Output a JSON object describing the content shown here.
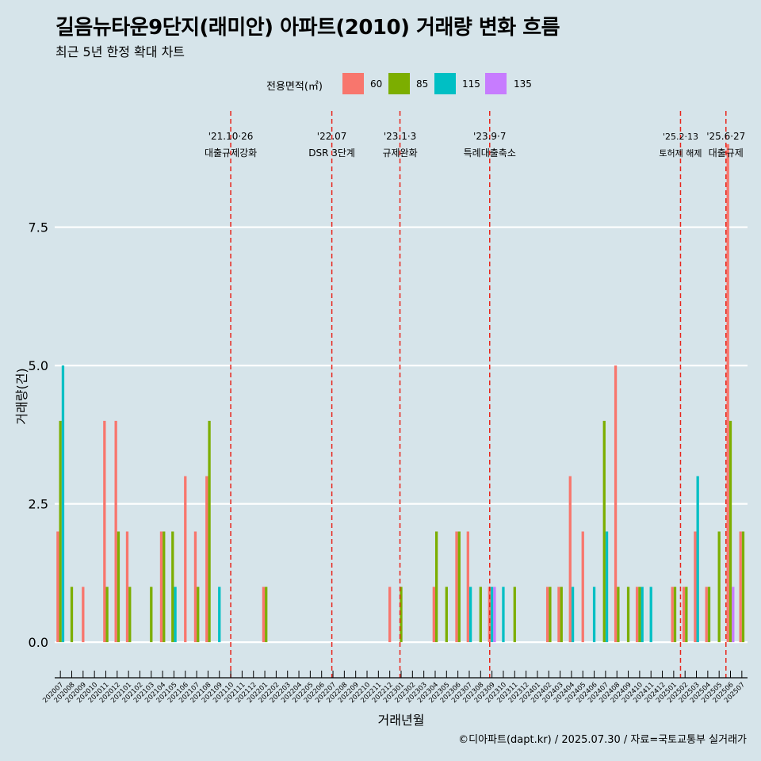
{
  "page": {
    "title": "길음뉴타운9단지(래미안) 아파트(2010) 거래량 변화 흐름",
    "subtitle": "최근 5년 한정 확대 차트",
    "caption": "©디아파트(dapt.kr) / 2025.07.30 / 자료=국토교통부 실거래가"
  },
  "legend": {
    "title": "전용면적(㎡)",
    "items": [
      {
        "label": "60",
        "color": "#f8766d"
      },
      {
        "label": "85",
        "color": "#7cae00"
      },
      {
        "label": "115",
        "color": "#00bfc4"
      },
      {
        "label": "135",
        "color": "#c77cff"
      }
    ]
  },
  "chart_data": {
    "type": "bar",
    "xlabel": "거래년월",
    "ylabel": "거래량(건)",
    "ylim": [
      -0.5,
      9.6
    ],
    "yticks": [
      0.0,
      2.5,
      5.0,
      7.5
    ],
    "ytick_labels": [
      "0.0",
      "2.5",
      "5.0",
      "7.5"
    ],
    "grid": true,
    "legend_position": "top",
    "categories": [
      "202007",
      "202008",
      "202009",
      "202010",
      "202011",
      "202012",
      "202101",
      "202102",
      "202103",
      "202104",
      "202105",
      "202106",
      "202107",
      "202108",
      "202109",
      "202110",
      "202111",
      "202112",
      "202201",
      "202202",
      "202203",
      "202204",
      "202205",
      "202206",
      "202207",
      "202208",
      "202209",
      "202210",
      "202211",
      "202212",
      "202301",
      "202302",
      "202303",
      "202304",
      "202305",
      "202306",
      "202307",
      "202308",
      "202309",
      "202310",
      "202311",
      "202312",
      "202401",
      "202402",
      "202403",
      "202404",
      "202405",
      "202406",
      "202407",
      "202408",
      "202409",
      "202410",
      "202411",
      "202412",
      "202501",
      "202502",
      "202503",
      "202504",
      "202505",
      "202506",
      "202507"
    ],
    "series": [
      {
        "name": "60",
        "color": "#f8766d",
        "values": [
          2,
          0,
          1,
          0,
          4,
          4,
          2,
          0,
          0,
          2,
          0,
          3,
          2,
          3,
          0,
          0,
          0,
          0,
          1,
          0,
          0,
          0,
          0,
          0,
          0,
          0,
          0,
          0,
          0,
          1,
          0,
          0,
          0,
          1,
          0,
          2,
          2,
          0,
          1,
          0,
          0,
          0,
          0,
          1,
          1,
          3,
          2,
          0,
          0,
          5,
          0,
          1,
          0,
          0,
          1,
          1,
          2,
          1,
          0,
          9,
          2
        ]
      },
      {
        "name": "85",
        "color": "#7cae00",
        "values": [
          4,
          1,
          0,
          0,
          1,
          2,
          1,
          0,
          1,
          2,
          2,
          0,
          1,
          4,
          0,
          0,
          0,
          0,
          1,
          0,
          0,
          0,
          0,
          0,
          0,
          0,
          0,
          0,
          0,
          0,
          1,
          0,
          0,
          2,
          1,
          2,
          0,
          1,
          0,
          0,
          1,
          0,
          0,
          1,
          1,
          0,
          0,
          0,
          4,
          1,
          1,
          1,
          0,
          0,
          1,
          1,
          0,
          1,
          2,
          4,
          2
        ]
      },
      {
        "name": "115",
        "color": "#00bfc4",
        "values": [
          5,
          0,
          0,
          0,
          0,
          0,
          0,
          0,
          0,
          0,
          1,
          0,
          0,
          0,
          1,
          0,
          0,
          0,
          0,
          0,
          0,
          0,
          0,
          0,
          0,
          0,
          0,
          0,
          0,
          0,
          0,
          0,
          0,
          0,
          0,
          0,
          1,
          0,
          1,
          1,
          0,
          0,
          0,
          0,
          0,
          1,
          0,
          1,
          2,
          0,
          0,
          1,
          1,
          0,
          0,
          0,
          3,
          0,
          0,
          0,
          0
        ]
      },
      {
        "name": "135",
        "color": "#c77cff",
        "values": [
          0,
          0,
          0,
          0,
          0,
          0,
          0,
          0,
          0,
          0,
          0,
          0,
          0,
          0,
          0,
          0,
          0,
          0,
          0,
          0,
          0,
          0,
          0,
          0,
          0,
          0,
          0,
          0,
          0,
          0,
          0,
          0,
          0,
          0,
          0,
          0,
          0,
          0,
          1,
          0,
          0,
          0,
          0,
          0,
          0,
          0,
          0,
          0,
          0,
          0,
          0,
          0,
          0,
          0,
          0,
          0,
          0,
          0,
          0,
          1,
          0
        ]
      }
    ],
    "annotations": [
      {
        "at": 15.5,
        "date": "'21.10·26",
        "text": "대출규제강화",
        "small": false
      },
      {
        "at": 24.4,
        "date": "'22.07",
        "text": "DSR 3단계",
        "small": false
      },
      {
        "at": 30.4,
        "date": "'23.1·3",
        "text": "규제완화",
        "small": false
      },
      {
        "at": 38.3,
        "date": "'23.9·7",
        "text": "특례대출축소",
        "small": false
      },
      {
        "at": 55.1,
        "date": "'25.2·13",
        "text": "토허제 해제",
        "small": true
      },
      {
        "at": 59.1,
        "date": "'25.6·27",
        "text": "대출규제",
        "small": false
      }
    ],
    "annotation_color": "#e8251c"
  }
}
